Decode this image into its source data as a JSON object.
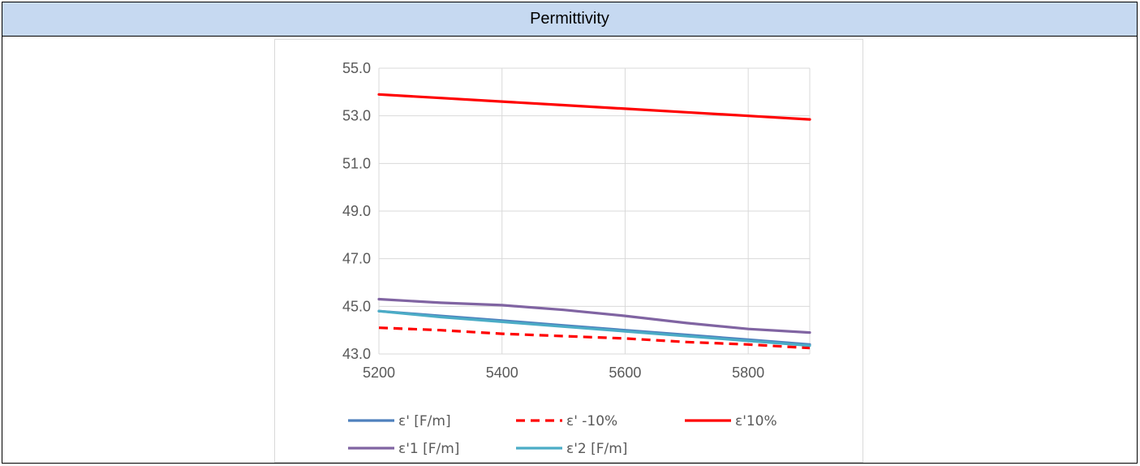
{
  "page": {
    "title": "Permittivity"
  },
  "chart_data": {
    "type": "line",
    "title": "",
    "xlabel": "",
    "ylabel": "",
    "xlim": [
      5200,
      5900
    ],
    "ylim": [
      43.0,
      55.0
    ],
    "xticks": [
      "5200",
      "5400",
      "5600",
      "5800"
    ],
    "yticks": [
      "55.0",
      "53.0",
      "51.0",
      "49.0",
      "47.0",
      "45.0",
      "43.0"
    ],
    "grid": true,
    "legend_position": "bottom",
    "x": [
      5200,
      5300,
      5400,
      5500,
      5600,
      5700,
      5800,
      5900
    ],
    "series": [
      {
        "name": "ε' [F/m]",
        "color": "#4f81bd",
        "dash": "solid",
        "values": [
          44.8,
          44.6,
          44.4,
          44.2,
          44.0,
          43.8,
          43.6,
          43.4
        ]
      },
      {
        "name": "ε' -10%",
        "color": "#ff0000",
        "dash": "dashed",
        "values": [
          44.1,
          44.0,
          43.85,
          43.75,
          43.65,
          43.5,
          43.4,
          43.25
        ]
      },
      {
        "name": "ε'10%",
        "color": "#ff0000",
        "dash": "solid",
        "values": [
          53.9,
          53.75,
          53.6,
          53.45,
          53.3,
          53.15,
          53.0,
          52.85
        ]
      },
      {
        "name": "ε'1 [F/m]",
        "color": "#8064a2",
        "dash": "solid",
        "values": [
          45.3,
          45.15,
          45.05,
          44.85,
          44.6,
          44.3,
          44.05,
          43.9
        ]
      },
      {
        "name": "ε'2 [F/m]",
        "color": "#4bacc6",
        "dash": "solid",
        "values": [
          44.8,
          44.55,
          44.35,
          44.15,
          43.95,
          43.75,
          43.55,
          43.35
        ]
      }
    ]
  }
}
